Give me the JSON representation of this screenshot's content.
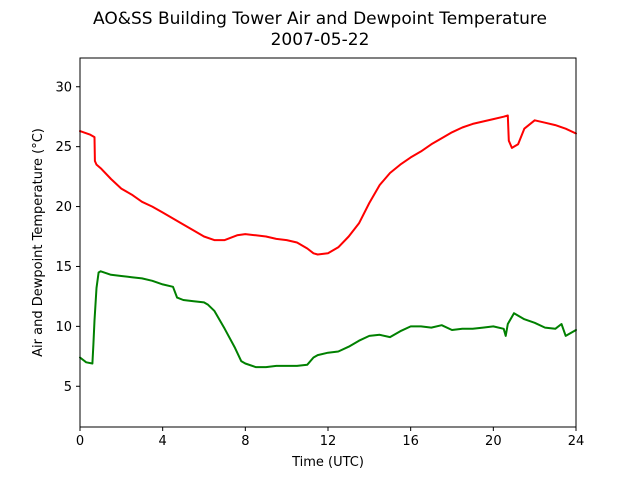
{
  "chart_data": {
    "type": "line",
    "title": "AO&SS Building Tower Air and Dewpoint Temperature",
    "subtitle": "2007-05-22",
    "xlabel": "Time (UTC)",
    "ylabel": "Air and Dewpoint Temperature (°C)",
    "xlim": [
      0,
      24
    ],
    "ylim": [
      1.6,
      32.4
    ],
    "xticks": [
      0,
      4,
      8,
      12,
      16,
      20,
      24
    ],
    "yticks": [
      5,
      10,
      15,
      20,
      25,
      30
    ],
    "grid": false,
    "legend": "none",
    "series": [
      {
        "color": "#ff0000",
        "x": [
          0.0,
          0.5,
          0.7,
          0.72,
          0.8,
          1.0,
          1.5,
          2.0,
          2.5,
          3.0,
          3.5,
          4.0,
          4.5,
          5.0,
          5.5,
          6.0,
          6.5,
          7.0,
          7.3,
          7.6,
          8.0,
          8.5,
          9.0,
          9.5,
          10.0,
          10.5,
          11.0,
          11.3,
          11.5,
          12.0,
          12.5,
          13.0,
          13.5,
          14.0,
          14.5,
          15.0,
          15.5,
          16.0,
          16.5,
          17.0,
          17.5,
          18.0,
          18.5,
          19.0,
          19.5,
          20.0,
          20.5,
          20.7,
          20.75,
          20.9,
          21.2,
          21.5,
          22.0,
          22.5,
          23.0,
          23.5,
          24.0
        ],
        "y": [
          26.3,
          26.0,
          25.8,
          23.8,
          23.5,
          23.2,
          22.3,
          21.5,
          21.0,
          20.4,
          20.0,
          19.5,
          19.0,
          18.5,
          18.0,
          17.5,
          17.2,
          17.2,
          17.4,
          17.6,
          17.7,
          17.6,
          17.5,
          17.3,
          17.2,
          17.0,
          16.5,
          16.1,
          16.0,
          16.1,
          16.6,
          17.5,
          18.6,
          20.3,
          21.8,
          22.8,
          23.5,
          24.1,
          24.6,
          25.2,
          25.7,
          26.2,
          26.6,
          26.9,
          27.1,
          27.3,
          27.5,
          27.6,
          25.5,
          24.9,
          25.2,
          26.5,
          27.2,
          27.0,
          26.8,
          26.5,
          26.1
        ],
        "values": [
          26.3,
          26.0,
          25.8,
          23.8,
          23.5,
          23.2,
          22.3,
          21.5,
          21.0,
          20.4,
          20.0,
          19.5,
          19.0,
          18.5,
          18.0,
          17.5,
          17.2,
          17.2,
          17.4,
          17.6,
          17.7,
          17.6,
          17.5,
          17.3,
          17.2,
          17.0,
          16.5,
          16.1,
          16.0,
          16.1,
          16.6,
          17.5,
          18.6,
          20.3,
          21.8,
          22.8,
          23.5,
          24.1,
          24.6,
          25.2,
          25.7,
          26.2,
          26.6,
          26.9,
          27.1,
          27.3,
          27.5,
          27.6,
          25.5,
          24.9,
          25.2,
          26.5,
          27.2,
          27.0,
          26.8,
          26.5,
          26.1
        ]
      },
      {
        "color": "#008000",
        "x": [
          0.0,
          0.3,
          0.6,
          0.65,
          0.7,
          0.8,
          0.9,
          1.0,
          1.5,
          2.0,
          2.5,
          3.0,
          3.5,
          4.0,
          4.5,
          4.7,
          5.0,
          5.5,
          6.0,
          6.2,
          6.5,
          7.0,
          7.5,
          7.8,
          8.0,
          8.5,
          9.0,
          9.5,
          10.0,
          10.5,
          11.0,
          11.3,
          11.5,
          12.0,
          12.5,
          13.0,
          13.5,
          14.0,
          14.5,
          15.0,
          15.5,
          16.0,
          16.5,
          17.0,
          17.5,
          18.0,
          18.5,
          19.0,
          19.5,
          20.0,
          20.5,
          20.6,
          20.7,
          21.0,
          21.5,
          22.0,
          22.5,
          23.0,
          23.3,
          23.5,
          24.0
        ],
        "y": [
          7.4,
          7.0,
          6.9,
          8.5,
          10.5,
          13.2,
          14.5,
          14.6,
          14.3,
          14.2,
          14.1,
          14.0,
          13.8,
          13.5,
          13.3,
          12.4,
          12.2,
          12.1,
          12.0,
          11.8,
          11.3,
          9.8,
          8.2,
          7.1,
          6.9,
          6.6,
          6.6,
          6.7,
          6.7,
          6.7,
          6.8,
          7.4,
          7.6,
          7.8,
          7.9,
          8.3,
          8.8,
          9.2,
          9.3,
          9.1,
          9.6,
          10.0,
          10.0,
          9.9,
          10.1,
          9.7,
          9.8,
          9.8,
          9.9,
          10.0,
          9.8,
          9.2,
          10.2,
          11.1,
          10.6,
          10.3,
          9.9,
          9.8,
          10.2,
          9.2,
          9.7
        ],
        "values": [
          7.4,
          7.0,
          6.9,
          8.5,
          10.5,
          13.2,
          14.5,
          14.6,
          14.3,
          14.2,
          14.1,
          14.0,
          13.8,
          13.5,
          13.3,
          12.4,
          12.2,
          12.1,
          12.0,
          11.8,
          11.3,
          9.8,
          8.2,
          7.1,
          6.9,
          6.6,
          6.6,
          6.7,
          6.7,
          6.7,
          6.8,
          7.4,
          7.6,
          7.8,
          7.9,
          8.3,
          8.8,
          9.2,
          9.3,
          9.1,
          9.6,
          10.0,
          10.0,
          9.9,
          10.1,
          9.7,
          9.8,
          9.8,
          9.9,
          10.0,
          9.8,
          9.2,
          10.2,
          11.1,
          10.6,
          10.3,
          9.9,
          9.8,
          10.2,
          9.2,
          9.7
        ]
      }
    ]
  }
}
